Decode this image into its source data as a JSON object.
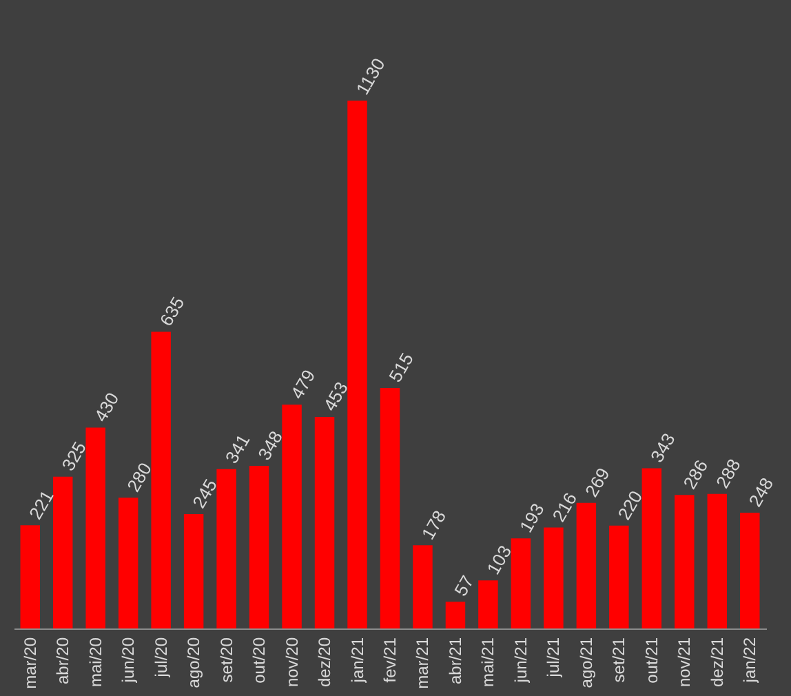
{
  "chart_data": {
    "type": "bar",
    "categories": [
      "mar/20",
      "abr/20",
      "mai/20",
      "jun/20",
      "jul/20",
      "ago/20",
      "set/20",
      "out/20",
      "nov/20",
      "dez/20",
      "jan/21",
      "fev/21",
      "mar/21",
      "abr/21",
      "mai/21",
      "jun/21",
      "jul/21",
      "ago/21",
      "set/21",
      "out/21",
      "nov/21",
      "dez/21",
      "jan/22"
    ],
    "values": [
      221,
      325,
      430,
      280,
      635,
      245,
      341,
      348,
      479,
      453,
      1130,
      515,
      178,
      57,
      103,
      193,
      216,
      269,
      220,
      343,
      286,
      288,
      248
    ],
    "color": "#ff0000",
    "data_labels": true,
    "grid": false,
    "tick_labels": "x"
  }
}
